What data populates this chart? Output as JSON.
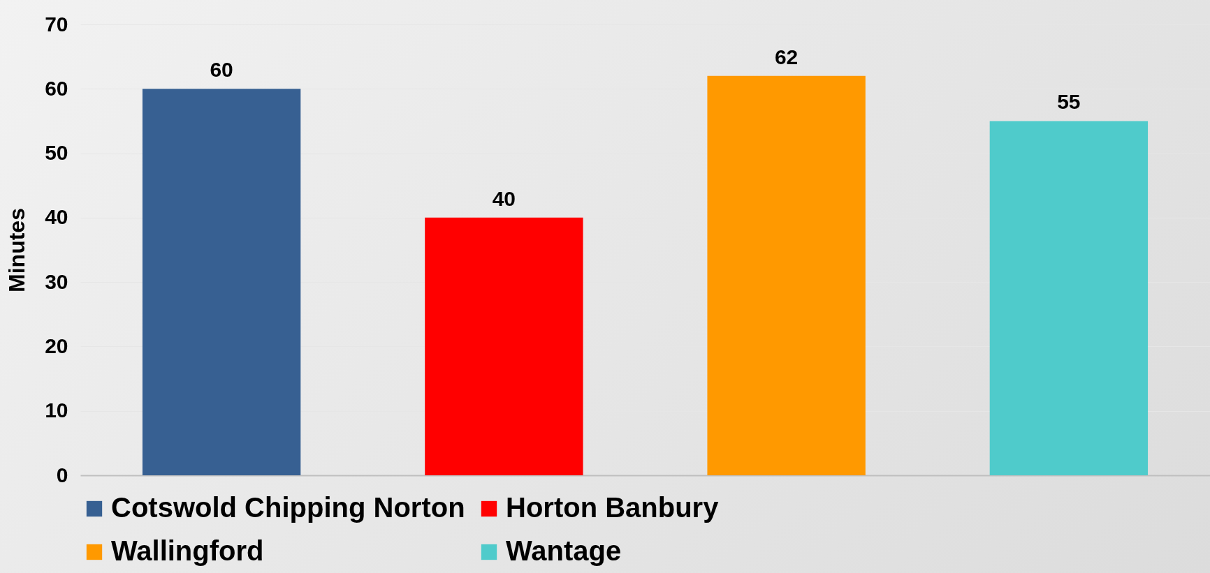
{
  "chart_data": {
    "type": "bar",
    "ylabel": "Minutes",
    "categories": [
      null,
      null,
      null,
      null
    ],
    "series": [
      {
        "name": "Cotswold Chipping Norton",
        "color": "#376092",
        "values": [
          60,
          null,
          null,
          null
        ]
      },
      {
        "name": "Horton Banbury",
        "color": "#ff0000",
        "values": [
          null,
          40,
          null,
          null
        ]
      },
      {
        "name": "Wallingford",
        "color": "#ff9900",
        "values": [
          null,
          null,
          62,
          null
        ]
      },
      {
        "name": "Wantage",
        "color": "#4fcbcb",
        "values": [
          null,
          null,
          null,
          55
        ]
      }
    ],
    "ylim": [
      0,
      70
    ],
    "yticks": [
      0,
      10,
      20,
      30,
      40,
      50,
      60,
      70
    ],
    "grid": "y",
    "legend": "bottom",
    "data_labels": true
  }
}
